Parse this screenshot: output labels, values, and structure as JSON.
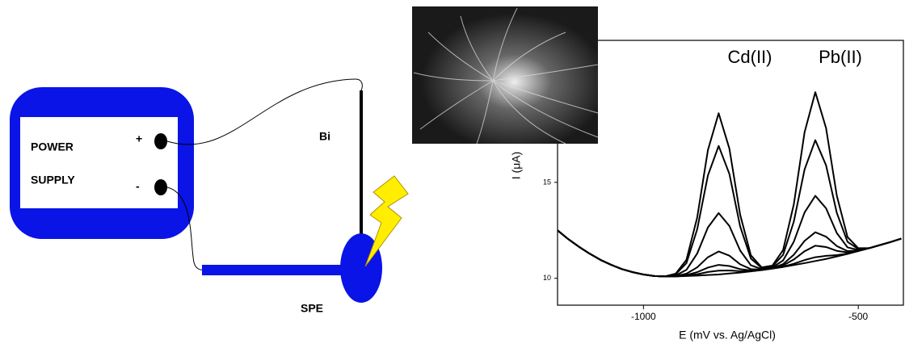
{
  "diagram": {
    "power_label": "POWER",
    "supply_label": "SUPPLY",
    "plus": "+",
    "minus": "-",
    "electrode_label": "Bi",
    "spe_label": "SPE"
  },
  "chart_data": {
    "type": "line",
    "x_label": "E (mV vs. Ag/AgCl)",
    "y_label": "I (μA)",
    "annotations": [
      "Cd(II)",
      "Pb(II)"
    ],
    "color": "#000000",
    "xlim": [
      -1200,
      -395
    ],
    "ylim": [
      8.6,
      22.4
    ],
    "xticks": [
      -1000,
      -500
    ],
    "yticks": [
      10,
      15
    ],
    "x": [
      -1200,
      -1175,
      -1150,
      -1125,
      -1100,
      -1075,
      -1050,
      -1025,
      -1000,
      -975,
      -950,
      -925,
      -900,
      -875,
      -850,
      -825,
      -800,
      -775,
      -750,
      -725,
      -700,
      -675,
      -650,
      -625,
      -600,
      -575,
      -550,
      -525,
      -500,
      -475,
      -450,
      -425,
      -400
    ],
    "series": [
      {
        "values": [
          12.5,
          12.04,
          11.64,
          11.28,
          10.96,
          10.7,
          10.48,
          10.32,
          10.2,
          10.12,
          10.1,
          10.1,
          10.12,
          10.14,
          10.17,
          10.2,
          10.25,
          10.3,
          10.36,
          10.43,
          10.51,
          10.59,
          10.69,
          10.79,
          10.9,
          11.01,
          11.14,
          11.27,
          11.42,
          11.57,
          11.73,
          11.89,
          12.07
        ]
      },
      {
        "values": [
          12.5,
          12.04,
          11.64,
          11.28,
          10.96,
          10.7,
          10.48,
          10.32,
          10.2,
          10.12,
          10.1,
          10.24,
          10.96,
          13.16,
          16.68,
          18.6,
          16.76,
          13.32,
          11.2,
          10.57,
          10.66,
          11.47,
          13.86,
          17.61,
          19.7,
          17.83,
          14.31,
          12.15,
          11.57,
          11.57,
          11.73,
          11.89,
          12.07
        ]
      },
      {
        "values": [
          12.5,
          12.04,
          11.64,
          11.28,
          10.96,
          10.7,
          10.48,
          10.32,
          10.2,
          10.12,
          10.1,
          10.21,
          10.79,
          12.55,
          15.36,
          16.9,
          15.44,
          12.71,
          11.03,
          10.54,
          10.62,
          11.22,
          12.96,
          15.67,
          17.2,
          15.89,
          13.41,
          11.9,
          11.53,
          11.57,
          11.73,
          11.89,
          12.07
        ]
      },
      {
        "values": [
          12.5,
          12.04,
          11.64,
          11.28,
          10.96,
          10.7,
          10.48,
          10.32,
          10.2,
          10.12,
          10.1,
          10.15,
          10.44,
          11.29,
          12.65,
          13.4,
          12.73,
          11.45,
          10.68,
          10.48,
          10.57,
          10.93,
          11.91,
          13.43,
          14.3,
          13.65,
          12.36,
          11.61,
          11.48,
          11.57,
          11.73,
          11.89,
          12.07
        ]
      },
      {
        "values": [
          12.5,
          12.04,
          11.64,
          11.28,
          10.96,
          10.7,
          10.48,
          10.32,
          10.2,
          10.12,
          10.1,
          10.12,
          10.24,
          10.57,
          11.1,
          11.4,
          11.18,
          10.73,
          10.48,
          10.45,
          10.54,
          10.74,
          11.23,
          11.95,
          12.4,
          12.17,
          11.68,
          11.42,
          11.45,
          11.57,
          11.73,
          11.89,
          12.07
        ]
      },
      {
        "values": [
          12.5,
          12.04,
          11.64,
          11.28,
          10.96,
          10.7,
          10.48,
          10.32,
          10.2,
          10.12,
          10.1,
          10.11,
          10.17,
          10.32,
          10.56,
          10.7,
          10.64,
          10.48,
          10.41,
          10.44,
          10.52,
          10.67,
          10.98,
          11.41,
          11.7,
          11.63,
          11.43,
          11.35,
          11.43,
          11.57,
          11.73,
          11.89,
          12.07
        ]
      },
      {
        "values": [
          12.5,
          12.04,
          11.64,
          11.28,
          10.96,
          10.7,
          10.48,
          10.32,
          10.2,
          10.12,
          10.1,
          10.1,
          10.14,
          10.21,
          10.33,
          10.4,
          10.41,
          10.37,
          10.38,
          10.43,
          10.51,
          10.61,
          10.76,
          10.95,
          11.1,
          11.17,
          11.21,
          11.29,
          11.42,
          11.57,
          11.73,
          11.89,
          12.07
        ]
      }
    ]
  }
}
